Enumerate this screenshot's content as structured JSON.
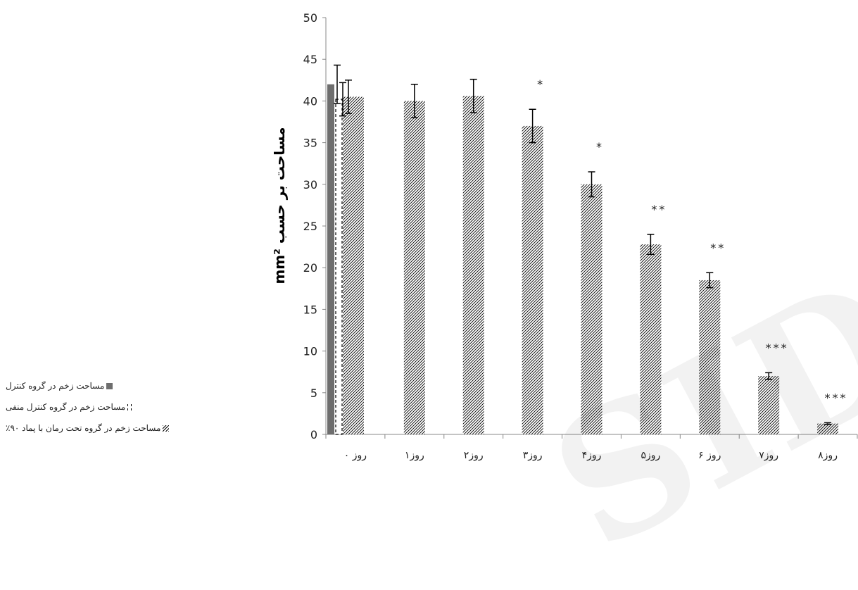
{
  "chart_data": {
    "type": "bar",
    "ylabel": "مساحت بر حسب",
    "ylabel_unit": "mm²",
    "ylim": [
      0,
      50
    ],
    "yticks": [
      "0",
      "5",
      "10",
      "15",
      "20",
      "25",
      "30",
      "35",
      "40",
      "45",
      "50"
    ],
    "categories": [
      "روز ۰",
      "روز۱",
      "روز۲",
      "روز۳",
      "روز۴",
      "روز۵",
      "روز ۶",
      "روز۷",
      "روز۸"
    ],
    "series": [
      {
        "name": "مساحت زخم در گروه کنترل",
        "style": "solid",
        "color": "#6e6e6e",
        "values": [
          42,
          null,
          null,
          null,
          null,
          null,
          null,
          null,
          null
        ],
        "errors": [
          2.3,
          null,
          null,
          null,
          null,
          null,
          null,
          null,
          null
        ]
      },
      {
        "name": "مساحت زخم در گروه کنترل منفی",
        "style": "dashed",
        "color": "#000000",
        "values": [
          40.2,
          null,
          null,
          null,
          null,
          null,
          null,
          null,
          null
        ],
        "errors": [
          2.0,
          null,
          null,
          null,
          null,
          null,
          null,
          null,
          null
        ]
      },
      {
        "name": "مساحت زخم در گروه تحت رمان با پماد ۹۰٪",
        "style": "hatched",
        "color": "#000000",
        "values": [
          40.5,
          40.0,
          40.6,
          37.0,
          30.0,
          22.8,
          18.5,
          7.0,
          1.3
        ],
        "errors": [
          2.0,
          2.0,
          2.0,
          2.0,
          1.5,
          1.2,
          0.9,
          0.4,
          0.1
        ]
      }
    ],
    "annotations": [
      "",
      "",
      "",
      "*",
      "*",
      "**",
      "**",
      "***",
      "***"
    ],
    "legend_position": "bottom-left",
    "grid": false
  },
  "watermark": "SID"
}
